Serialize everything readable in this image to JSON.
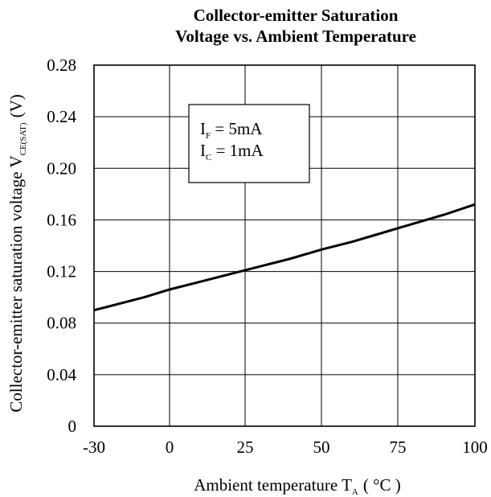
{
  "chart_data": {
    "type": "line",
    "title_line1": "Collector-emitter Saturation",
    "title_line2": "Voltage vs. Ambient Temperature",
    "ylabel_main": "Collector-emitter saturation voltage  V",
    "ylabel_sub": "CE(SAT)",
    "ylabel_unit": "(V)",
    "xlabel_main": "Ambient temperature  T",
    "xlabel_sub": "A",
    "xlabel_unit": "( °C )",
    "x_categories": [
      "-30",
      "0",
      "25",
      "50",
      "75",
      "100"
    ],
    "y_ticks": [
      "0",
      "0.04",
      "0.08",
      "0.12",
      "0.16",
      "0.20",
      "0.24",
      "0.28"
    ],
    "ylim": [
      0,
      0.28
    ],
    "grid": true,
    "legend": {
      "line1_main": "I",
      "line1_sub": "F",
      "line1_value": " = 5mA",
      "line2_main": "I",
      "line2_sub": "C",
      "line2_value": " = 1mA"
    },
    "series": [
      {
        "x": [
          -30,
          -20,
          -10,
          0,
          10,
          20,
          30,
          40,
          50,
          60,
          70,
          80,
          90,
          100
        ],
        "values": [
          0.09,
          0.095,
          0.1,
          0.106,
          0.112,
          0.118,
          0.124,
          0.13,
          0.137,
          0.143,
          0.15,
          0.157,
          0.164,
          0.172
        ]
      }
    ]
  }
}
